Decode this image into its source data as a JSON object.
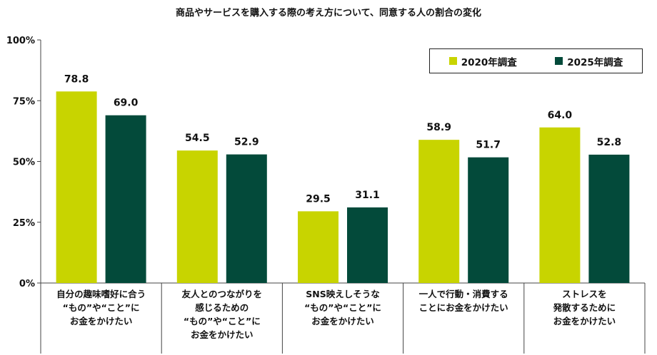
{
  "chart_data": {
    "type": "bar",
    "title": "商品やサービスを購入する際の考え方について、同意する人の割合の変化",
    "categories": [
      "自分の趣味嗜好に合う\n“もの”や“こと”に\nお金をかけたい",
      "友人とのつながりを\n感じるための\n“もの”や“こと”に\nお金をかけたい",
      "SNS映えしそうな\n“もの”や“こと”に\nお金をかけたい",
      "一人で行動・消費する\nことにお金をかけたい",
      "ストレスを\n発散するために\nお金をかけたい"
    ],
    "series": [
      {
        "name": "2020年調査",
        "color": "#c8d400",
        "values": [
          78.8,
          54.5,
          29.5,
          58.9,
          64.0
        ]
      },
      {
        "name": "2025年調査",
        "color": "#034a3a",
        "values": [
          69.0,
          52.9,
          31.1,
          51.7,
          52.8
        ]
      }
    ],
    "y_ticks": [
      "0%",
      "25%",
      "50%",
      "75%",
      "100%"
    ],
    "y_tick_values": [
      0,
      25,
      50,
      75,
      100
    ],
    "ylim": [
      0,
      100
    ],
    "value_labels": [
      [
        "78.8",
        "54.5",
        "29.5",
        "58.9",
        "64.0"
      ],
      [
        "69.0",
        "52.9",
        "31.1",
        "51.7",
        "52.8"
      ]
    ],
    "legend_position": "top-right",
    "xlabel": "",
    "ylabel": ""
  }
}
